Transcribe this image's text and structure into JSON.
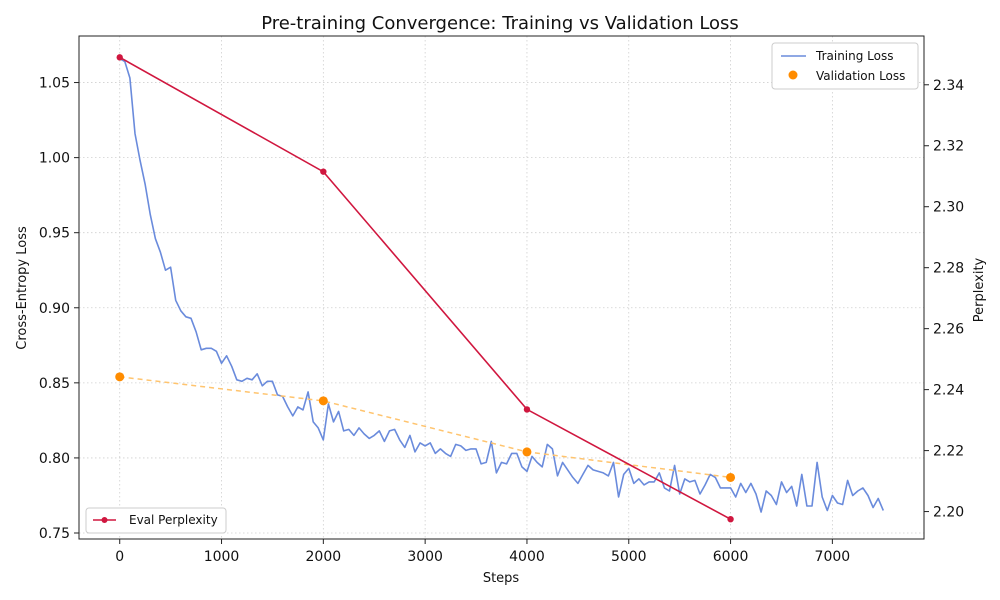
{
  "chart_data": {
    "type": "line",
    "title": "Pre-training Convergence: Training vs Validation Loss",
    "xlabel": "Steps",
    "ylabel": "Cross-Entropy Loss",
    "ylabel_right": "Perplexity",
    "xlim": [
      -400,
      7900
    ],
    "ylim": [
      0.746,
      1.081
    ],
    "ylim_right": [
      2.191,
      2.356
    ],
    "x_ticks": [
      0,
      1000,
      2000,
      3000,
      4000,
      5000,
      6000,
      7000
    ],
    "y_ticks": [
      0.75,
      0.8,
      0.85,
      0.9,
      0.95,
      1.0,
      1.05
    ],
    "y_ticks_right": [
      2.2,
      2.22,
      2.24,
      2.26,
      2.28,
      2.3,
      2.32,
      2.34
    ],
    "grid": true,
    "legend_main_position": "top-right",
    "legend_right_position": "bottom-left",
    "series": [
      {
        "name": "Training Loss",
        "axis": "left",
        "style": "line",
        "color": "#6a8bdc",
        "x": [
          0,
          50,
          100,
          150,
          200,
          250,
          300,
          350,
          400,
          450,
          500,
          550,
          600,
          650,
          700,
          750,
          800,
          850,
          900,
          950,
          1000,
          1050,
          1100,
          1150,
          1200,
          1250,
          1300,
          1350,
          1400,
          1450,
          1500,
          1550,
          1600,
          1650,
          1700,
          1750,
          1800,
          1850,
          1900,
          1950,
          2000,
          2050,
          2100,
          2150,
          2200,
          2250,
          2300,
          2350,
          2400,
          2450,
          2500,
          2550,
          2600,
          2650,
          2700,
          2750,
          2800,
          2850,
          2900,
          2950,
          3000,
          3050,
          3100,
          3150,
          3200,
          3250,
          3300,
          3350,
          3400,
          3450,
          3500,
          3550,
          3600,
          3650,
          3700,
          3750,
          3800,
          3850,
          3900,
          3950,
          4000,
          4050,
          4100,
          4150,
          4200,
          4250,
          4300,
          4350,
          4400,
          4450,
          4500,
          4550,
          4600,
          4650,
          4700,
          4750,
          4800,
          4850,
          4900,
          4950,
          5000,
          5050,
          5100,
          5150,
          5200,
          5250,
          5300,
          5350,
          5400,
          5450,
          5500,
          5550,
          5600,
          5650,
          5700,
          5750,
          5800,
          5850,
          5900,
          5950,
          6000,
          6050,
          6100,
          6150,
          6200,
          6250,
          6300,
          6350,
          6400,
          6450,
          6500,
          6550,
          6600,
          6650,
          6700,
          6750,
          6800,
          6850,
          6900,
          6950,
          7000,
          7050,
          7100,
          7150,
          7200,
          7250,
          7300,
          7350,
          7400,
          7450,
          7500
        ],
        "values": [
          1.066,
          1.064,
          1.053,
          1.016,
          0.998,
          0.982,
          0.962,
          0.946,
          0.937,
          0.925,
          0.927,
          0.905,
          0.898,
          0.894,
          0.893,
          0.884,
          0.872,
          0.873,
          0.873,
          0.871,
          0.863,
          0.868,
          0.861,
          0.852,
          0.851,
          0.853,
          0.852,
          0.856,
          0.848,
          0.851,
          0.851,
          0.842,
          0.841,
          0.834,
          0.828,
          0.834,
          0.832,
          0.844,
          0.824,
          0.82,
          0.812,
          0.836,
          0.824,
          0.831,
          0.818,
          0.819,
          0.815,
          0.82,
          0.816,
          0.813,
          0.815,
          0.818,
          0.811,
          0.818,
          0.819,
          0.812,
          0.807,
          0.815,
          0.804,
          0.81,
          0.808,
          0.81,
          0.803,
          0.806,
          0.803,
          0.801,
          0.809,
          0.808,
          0.805,
          0.806,
          0.806,
          0.796,
          0.797,
          0.811,
          0.79,
          0.797,
          0.796,
          0.803,
          0.803,
          0.794,
          0.791,
          0.801,
          0.797,
          0.794,
          0.809,
          0.806,
          0.788,
          0.797,
          0.792,
          0.787,
          0.783,
          0.789,
          0.795,
          0.792,
          0.791,
          0.79,
          0.788,
          0.797,
          0.774,
          0.789,
          0.793,
          0.783,
          0.786,
          0.782,
          0.784,
          0.784,
          0.79,
          0.78,
          0.778,
          0.795,
          0.776,
          0.786,
          0.784,
          0.785,
          0.776,
          0.782,
          0.789,
          0.787,
          0.78,
          0.78,
          0.78,
          0.774,
          0.783,
          0.777,
          0.783,
          0.776,
          0.764,
          0.778,
          0.775,
          0.769,
          0.784,
          0.777,
          0.781,
          0.768,
          0.789,
          0.768,
          0.768,
          0.797,
          0.774,
          0.765,
          0.775,
          0.77,
          0.769,
          0.785,
          0.775,
          0.778,
          0.78,
          0.775,
          0.767,
          0.773,
          0.765
        ]
      },
      {
        "name": "Validation Loss",
        "axis": "left",
        "style": "scatter",
        "color": "#ff8c00",
        "trend_color": "#ffc46e",
        "x": [
          0,
          2000,
          4000,
          6000
        ],
        "values": [
          0.854,
          0.838,
          0.804,
          0.787
        ]
      },
      {
        "name": "Eval Perplexity",
        "axis": "right",
        "style": "line-marker",
        "color": "#d0173f",
        "x": [
          0,
          2000,
          4000,
          6000
        ],
        "values": [
          2.349,
          2.3115,
          2.2335,
          2.1975
        ]
      }
    ]
  }
}
